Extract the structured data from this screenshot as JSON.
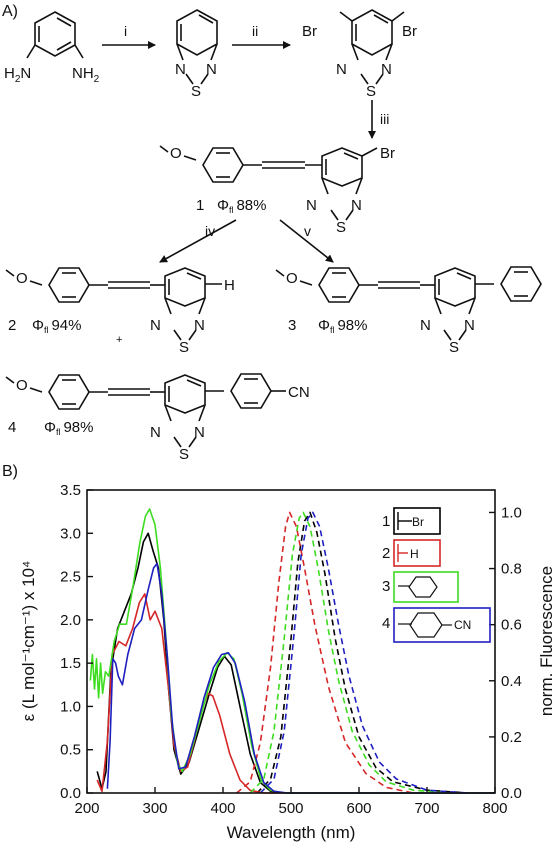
{
  "panel_a": {
    "label": "A)",
    "steps": [
      "i",
      "ii",
      "iii",
      "iv",
      "v"
    ],
    "start_material": {
      "nh2_left": "H",
      "nh2_left_sub": "2",
      "nh2_left_n": "N",
      "nh2_right": "NH",
      "nh2_right_sub": "2"
    },
    "ring_atoms": {
      "n": "N",
      "s": "S"
    },
    "dibromo": {
      "br": "Br"
    },
    "methoxy": "O",
    "compounds": [
      {
        "number": "1",
        "phi": "Φ",
        "phi_sub": "fl",
        "qy": "88%",
        "end_group": "Br"
      },
      {
        "number": "2",
        "phi": "Φ",
        "phi_sub": "fl",
        "qy": "94%",
        "end_group": "H",
        "plus": "+"
      },
      {
        "number": "3",
        "phi": "Φ",
        "phi_sub": "fl",
        "qy": "98%",
        "end_group": ""
      },
      {
        "number": "4",
        "phi": "Φ",
        "phi_sub": "fl",
        "qy": "98%",
        "end_group": "CN"
      }
    ]
  },
  "panel_b": {
    "label": "B)",
    "legend": [
      {
        "number": "1",
        "group": "Br",
        "color": "#000000"
      },
      {
        "number": "2",
        "group": "H",
        "color": "#d62728"
      },
      {
        "number": "3",
        "group": "",
        "color": "#3ddc20"
      },
      {
        "number": "4",
        "group": "CN",
        "color": "#1f1fbf"
      }
    ]
  },
  "chart_data": {
    "type": "line",
    "xlabel": "Wavelength (nm)",
    "ylabel_left": "ε (L mol⁻¹cm⁻¹) x 10⁴",
    "ylabel_right": "norm. Fluorescence",
    "xlim": [
      200,
      800
    ],
    "ylim_left": [
      0,
      3.5
    ],
    "ylim_right": [
      0,
      1.08
    ],
    "x_ticks": [
      "200",
      "300",
      "400",
      "500",
      "600",
      "700",
      "800"
    ],
    "y_ticks_left": [
      "0.0",
      "0.5",
      "1.0",
      "1.5",
      "2.0",
      "2.5",
      "3.0",
      "3.5"
    ],
    "y_ticks_right": [
      "0.0",
      "0.2",
      "0.4",
      "0.6",
      "0.8",
      "1.0"
    ],
    "series": [
      {
        "compound": "1",
        "color": "#000000",
        "absorption": [
          [
            215,
            0.25
          ],
          [
            222,
            0.05
          ],
          [
            228,
            0.25
          ],
          [
            235,
            1.4
          ],
          [
            245,
            1.9
          ],
          [
            255,
            2.1
          ],
          [
            265,
            2.3
          ],
          [
            275,
            2.6
          ],
          [
            283,
            2.9
          ],
          [
            290,
            3.0
          ],
          [
            297,
            2.8
          ],
          [
            305,
            2.6
          ],
          [
            313,
            2.0
          ],
          [
            320,
            1.2
          ],
          [
            328,
            0.5
          ],
          [
            338,
            0.22
          ],
          [
            350,
            0.35
          ],
          [
            365,
            0.75
          ],
          [
            380,
            1.15
          ],
          [
            392,
            1.45
          ],
          [
            402,
            1.58
          ],
          [
            412,
            1.48
          ],
          [
            425,
            1.0
          ],
          [
            440,
            0.45
          ],
          [
            455,
            0.12
          ],
          [
            470,
            0.02
          ],
          [
            490,
            0.0
          ],
          [
            800,
            0.0
          ]
        ],
        "fluorescence": [
          [
            450,
            0.0
          ],
          [
            470,
            0.05
          ],
          [
            485,
            0.2
          ],
          [
            500,
            0.55
          ],
          [
            510,
            0.82
          ],
          [
            520,
            0.97
          ],
          [
            528,
            1.0
          ],
          [
            538,
            0.93
          ],
          [
            550,
            0.78
          ],
          [
            565,
            0.55
          ],
          [
            580,
            0.37
          ],
          [
            600,
            0.2
          ],
          [
            625,
            0.09
          ],
          [
            650,
            0.04
          ],
          [
            700,
            0.01
          ],
          [
            760,
            0.0
          ]
        ]
      },
      {
        "compound": "2",
        "color": "#d62728",
        "absorption": [
          [
            215,
            0.15
          ],
          [
            222,
            0.02
          ],
          [
            230,
            0.6
          ],
          [
            237,
            1.6
          ],
          [
            247,
            1.75
          ],
          [
            257,
            1.7
          ],
          [
            267,
            1.9
          ],
          [
            277,
            2.2
          ],
          [
            285,
            2.3
          ],
          [
            293,
            2.0
          ],
          [
            300,
            2.1
          ],
          [
            310,
            1.9
          ],
          [
            320,
            1.2
          ],
          [
            328,
            0.55
          ],
          [
            338,
            0.25
          ],
          [
            348,
            0.3
          ],
          [
            358,
            0.6
          ],
          [
            368,
            0.95
          ],
          [
            378,
            1.15
          ],
          [
            385,
            1.12
          ],
          [
            395,
            0.9
          ],
          [
            410,
            0.45
          ],
          [
            425,
            0.15
          ],
          [
            440,
            0.03
          ],
          [
            460,
            0.0
          ],
          [
            800,
            0.0
          ]
        ],
        "fluorescence": [
          [
            420,
            0.0
          ],
          [
            440,
            0.04
          ],
          [
            455,
            0.18
          ],
          [
            470,
            0.45
          ],
          [
            482,
            0.75
          ],
          [
            492,
            0.95
          ],
          [
            498,
            1.0
          ],
          [
            508,
            0.95
          ],
          [
            520,
            0.8
          ],
          [
            535,
            0.6
          ],
          [
            555,
            0.38
          ],
          [
            580,
            0.18
          ],
          [
            610,
            0.07
          ],
          [
            640,
            0.02
          ],
          [
            680,
            0.0
          ]
        ]
      },
      {
        "compound": "3",
        "color": "#3ddc20",
        "absorption": [
          [
            205,
            1.3
          ],
          [
            208,
            1.6
          ],
          [
            211,
            1.2
          ],
          [
            214,
            1.55
          ],
          [
            217,
            1.1
          ],
          [
            220,
            1.5
          ],
          [
            223,
            1.15
          ],
          [
            227,
            1.4
          ],
          [
            232,
            1.35
          ],
          [
            240,
            1.75
          ],
          [
            248,
            1.95
          ],
          [
            258,
            1.95
          ],
          [
            268,
            2.4
          ],
          [
            278,
            2.9
          ],
          [
            286,
            3.2
          ],
          [
            292,
            3.28
          ],
          [
            300,
            3.1
          ],
          [
            308,
            2.6
          ],
          [
            316,
            1.8
          ],
          [
            324,
            0.9
          ],
          [
            333,
            0.35
          ],
          [
            340,
            0.25
          ],
          [
            352,
            0.45
          ],
          [
            366,
            0.85
          ],
          [
            380,
            1.25
          ],
          [
            394,
            1.52
          ],
          [
            406,
            1.62
          ],
          [
            416,
            1.55
          ],
          [
            428,
            1.15
          ],
          [
            442,
            0.55
          ],
          [
            456,
            0.15
          ],
          [
            470,
            0.03
          ],
          [
            490,
            0.0
          ],
          [
            800,
            0.0
          ]
        ],
        "fluorescence": [
          [
            440,
            0.0
          ],
          [
            460,
            0.05
          ],
          [
            475,
            0.22
          ],
          [
            490,
            0.55
          ],
          [
            502,
            0.85
          ],
          [
            512,
            0.98
          ],
          [
            518,
            1.0
          ],
          [
            528,
            0.95
          ],
          [
            540,
            0.8
          ],
          [
            555,
            0.58
          ],
          [
            570,
            0.4
          ],
          [
            590,
            0.22
          ],
          [
            615,
            0.1
          ],
          [
            640,
            0.04
          ],
          [
            680,
            0.01
          ],
          [
            730,
            0.0
          ]
        ]
      },
      {
        "compound": "4",
        "color": "#1f1fbf",
        "absorption": [
          [
            230,
            0.05
          ],
          [
            234,
            0.6
          ],
          [
            238,
            1.55
          ],
          [
            242,
            1.5
          ],
          [
            246,
            1.35
          ],
          [
            252,
            1.25
          ],
          [
            260,
            1.6
          ],
          [
            270,
            1.9
          ],
          [
            280,
            2.0
          ],
          [
            290,
            2.35
          ],
          [
            298,
            2.6
          ],
          [
            303,
            2.65
          ],
          [
            310,
            2.3
          ],
          [
            318,
            1.6
          ],
          [
            326,
            0.75
          ],
          [
            335,
            0.28
          ],
          [
            345,
            0.3
          ],
          [
            358,
            0.65
          ],
          [
            372,
            1.1
          ],
          [
            386,
            1.45
          ],
          [
            398,
            1.6
          ],
          [
            408,
            1.62
          ],
          [
            418,
            1.5
          ],
          [
            432,
            1.05
          ],
          [
            446,
            0.45
          ],
          [
            460,
            0.12
          ],
          [
            475,
            0.02
          ],
          [
            495,
            0.0
          ],
          [
            800,
            0.0
          ]
        ],
        "fluorescence": [
          [
            455,
            0.0
          ],
          [
            475,
            0.05
          ],
          [
            490,
            0.22
          ],
          [
            505,
            0.58
          ],
          [
            515,
            0.85
          ],
          [
            525,
            0.98
          ],
          [
            532,
            1.0
          ],
          [
            542,
            0.95
          ],
          [
            555,
            0.8
          ],
          [
            570,
            0.6
          ],
          [
            585,
            0.42
          ],
          [
            605,
            0.24
          ],
          [
            630,
            0.11
          ],
          [
            655,
            0.05
          ],
          [
            700,
            0.01
          ],
          [
            760,
            0.0
          ]
        ]
      }
    ]
  }
}
